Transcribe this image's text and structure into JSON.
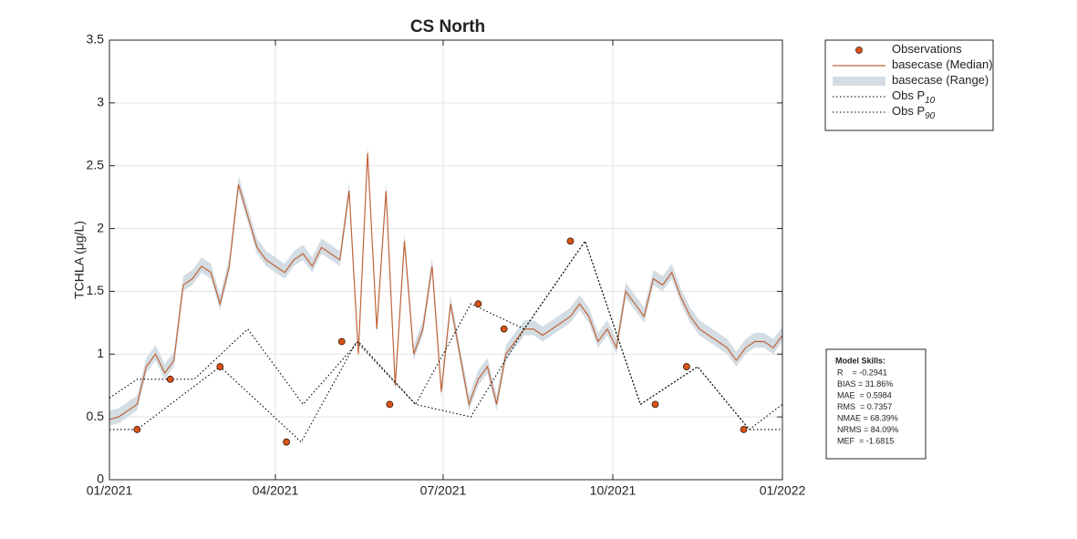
{
  "chart_data": {
    "type": "line",
    "title": "CS North",
    "ylabel": "TCHLA (μg/L)",
    "xlim": [
      0,
      365
    ],
    "xticks": [
      {
        "value": 0,
        "label": "01/2021"
      },
      {
        "value": 90,
        "label": "04/2021"
      },
      {
        "value": 181,
        "label": "07/2021"
      },
      {
        "value": 273,
        "label": "10/2021"
      },
      {
        "value": 365,
        "label": "01/2022"
      }
    ],
    "ylim": [
      0,
      3.5
    ],
    "yticks": [
      0,
      0.5,
      1,
      1.5,
      2,
      2.5,
      3,
      3.5
    ],
    "grid": true,
    "legend": "outside-right-top",
    "series": [
      {
        "name": "Observations",
        "mark": "scatter",
        "color": "#d95319",
        "x": [
          15,
          33,
          60,
          96,
          126,
          152,
          200,
          214,
          250,
          296,
          313,
          344
        ],
        "values": [
          0.4,
          0.8,
          0.9,
          0.3,
          1.1,
          0.6,
          1.4,
          1.2,
          1.9,
          0.6,
          0.9,
          0.4
        ]
      },
      {
        "name": "basecase (Median)",
        "mark": "line",
        "color": "#c0653a",
        "x": [
          0,
          5,
          10,
          15,
          20,
          25,
          30,
          35,
          40,
          45,
          50,
          55,
          60,
          65,
          70,
          75,
          80,
          85,
          90,
          95,
          100,
          105,
          110,
          115,
          120,
          125,
          130,
          135,
          140,
          145,
          150,
          155,
          160,
          165,
          170,
          175,
          180,
          185,
          190,
          195,
          200,
          205,
          210,
          215,
          220,
          225,
          230,
          235,
          240,
          245,
          250,
          255,
          260,
          265,
          270,
          275,
          280,
          285,
          290,
          295,
          300,
          305,
          310,
          315,
          320,
          325,
          330,
          335,
          340,
          345,
          350,
          355,
          360,
          365
        ],
        "values": [
          0.48,
          0.5,
          0.55,
          0.6,
          0.9,
          1.0,
          0.85,
          0.95,
          1.55,
          1.6,
          1.7,
          1.65,
          1.4,
          1.7,
          2.35,
          2.1,
          1.85,
          1.75,
          1.7,
          1.65,
          1.75,
          1.8,
          1.7,
          1.85,
          1.8,
          1.75,
          2.3,
          1.0,
          2.6,
          1.2,
          2.3,
          0.75,
          1.9,
          1.0,
          1.2,
          1.7,
          0.7,
          1.4,
          1.0,
          0.6,
          0.8,
          0.9,
          0.6,
          1.0,
          1.1,
          1.2,
          1.2,
          1.15,
          1.2,
          1.25,
          1.3,
          1.4,
          1.3,
          1.1,
          1.2,
          1.05,
          1.5,
          1.4,
          1.3,
          1.6,
          1.55,
          1.65,
          1.45,
          1.3,
          1.2,
          1.15,
          1.1,
          1.05,
          0.95,
          1.05,
          1.1,
          1.1,
          1.05,
          1.15
        ]
      },
      {
        "name": "basecase (Range)",
        "mark": "band",
        "color": "#d3dde3",
        "x": [
          0,
          5,
          10,
          15,
          20,
          25,
          30,
          35,
          40,
          45,
          50,
          55,
          60,
          65,
          70,
          75,
          80,
          85,
          90,
          95,
          100,
          105,
          110,
          115,
          120,
          125,
          130,
          135,
          140,
          145,
          150,
          155,
          160,
          165,
          170,
          175,
          180,
          185,
          190,
          195,
          200,
          205,
          210,
          215,
          220,
          225,
          230,
          235,
          240,
          245,
          250,
          255,
          260,
          265,
          270,
          275,
          280,
          285,
          290,
          295,
          300,
          305,
          310,
          315,
          320,
          325,
          330,
          335,
          340,
          345,
          350,
          355,
          360,
          365
        ],
        "lower": [
          0.43,
          0.45,
          0.5,
          0.55,
          0.85,
          0.95,
          0.8,
          0.9,
          1.5,
          1.55,
          1.65,
          1.6,
          1.35,
          1.65,
          2.3,
          2.05,
          1.8,
          1.7,
          1.65,
          1.6,
          1.7,
          1.75,
          1.65,
          1.8,
          1.75,
          1.7,
          2.25,
          0.95,
          2.55,
          1.15,
          2.25,
          0.7,
          1.85,
          0.95,
          1.15,
          1.65,
          0.65,
          1.35,
          0.95,
          0.55,
          0.75,
          0.85,
          0.55,
          0.95,
          1.05,
          1.15,
          1.15,
          1.1,
          1.15,
          1.2,
          1.25,
          1.35,
          1.25,
          1.05,
          1.15,
          1.0,
          1.45,
          1.35,
          1.25,
          1.55,
          1.5,
          1.6,
          1.4,
          1.25,
          1.15,
          1.1,
          1.05,
          1.0,
          0.9,
          1.0,
          1.05,
          1.05,
          1.0,
          1.1
        ],
        "upper": [
          0.55,
          0.57,
          0.62,
          0.67,
          0.97,
          1.07,
          0.92,
          1.02,
          1.62,
          1.67,
          1.77,
          1.72,
          1.47,
          1.77,
          2.42,
          2.17,
          1.92,
          1.82,
          1.77,
          1.72,
          1.82,
          1.87,
          1.77,
          1.92,
          1.87,
          1.82,
          2.37,
          1.07,
          2.67,
          1.27,
          2.37,
          0.82,
          1.97,
          1.07,
          1.27,
          1.77,
          0.77,
          1.47,
          1.07,
          0.67,
          0.87,
          0.97,
          0.67,
          1.07,
          1.17,
          1.27,
          1.27,
          1.22,
          1.27,
          1.32,
          1.37,
          1.47,
          1.37,
          1.17,
          1.27,
          1.12,
          1.57,
          1.47,
          1.37,
          1.67,
          1.62,
          1.72,
          1.52,
          1.37,
          1.27,
          1.22,
          1.17,
          1.12,
          1.02,
          1.12,
          1.17,
          1.17,
          1.12,
          1.22
        ]
      },
      {
        "name": "Obs P",
        "name_sub": "10",
        "mark": "dotted",
        "color": "#000000",
        "x": [
          0,
          15,
          60,
          104,
          134,
          166,
          196,
          225,
          258,
          288,
          319,
          347,
          365
        ],
        "values": [
          0.4,
          0.4,
          0.9,
          0.3,
          1.1,
          0.6,
          0.5,
          1.2,
          1.9,
          0.6,
          0.9,
          0.4,
          0.4
        ]
      },
      {
        "name": "Obs P",
        "name_sub": "90",
        "mark": "dotted",
        "color": "#000000",
        "x": [
          0,
          15,
          46,
          75,
          105,
          135,
          166,
          196,
          225,
          258,
          288,
          319,
          347,
          365
        ],
        "values": [
          0.65,
          0.8,
          0.8,
          1.2,
          0.6,
          1.1,
          0.6,
          1.4,
          1.2,
          1.9,
          0.6,
          0.9,
          0.4,
          0.6
        ]
      }
    ],
    "skills": {
      "title": "Model Skills:",
      "lines": [
        "R    = -0.2941",
        "BIAS = 31.86%",
        "MAE  = 0.5984",
        "RMS  = 0.7357",
        "NMAE = 68.39%",
        "NRMS = 84.09%",
        "MEF  = -1.6815"
      ]
    }
  }
}
